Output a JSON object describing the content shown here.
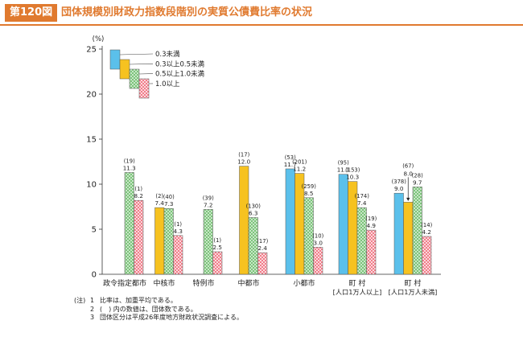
{
  "figure": {
    "badge": "第120図",
    "title": "団体規模別財政力指数段階別の実質公債費比率の状況"
  },
  "chart_data": {
    "type": "bar",
    "ylabel": "(%)",
    "ylim": [
      0,
      25
    ],
    "yticks": [
      0,
      5,
      10,
      15,
      20,
      25
    ],
    "grid": false,
    "legend_position": "top-left",
    "categories": [
      "政令指定都市",
      "中核市",
      "特例市",
      "中都市",
      "小都市",
      "町 村\n[人口1万人以上]",
      "町 村\n[人口1万人未満]"
    ],
    "series": [
      {
        "name": "0.3未満",
        "color": "#5bc0eb",
        "pattern": "solid",
        "values": [
          null,
          null,
          null,
          null,
          11.7,
          11.1,
          9.0
        ],
        "counts": [
          null,
          null,
          null,
          null,
          "(53)",
          "(95)",
          "(378)"
        ]
      },
      {
        "name": "0.3以上0.5未満",
        "color": "#f6c220",
        "pattern": "solid",
        "values": [
          null,
          7.4,
          null,
          12.0,
          11.2,
          10.3,
          8.0
        ],
        "counts": [
          null,
          "(2)",
          null,
          "(17)",
          "(201)",
          "(153)",
          "(67)"
        ]
      },
      {
        "name": "0.5以上1.0未満",
        "color": "#7cc47a",
        "pattern": "dots",
        "values": [
          11.3,
          7.3,
          7.2,
          6.3,
          8.5,
          7.4,
          9.7
        ],
        "counts": [
          "(19)",
          "(40)",
          "(39)",
          "(130)",
          "(259)",
          "(174)",
          "(28)"
        ]
      },
      {
        "name": "1.0以上",
        "color": "#ef6b7a",
        "pattern": "cross",
        "values": [
          8.2,
          4.3,
          2.5,
          2.4,
          3.0,
          4.9,
          4.2
        ],
        "counts": [
          "(1)",
          "(1)",
          "(1)",
          "(17)",
          "(10)",
          "(19)",
          "(14)"
        ]
      }
    ]
  },
  "notes": {
    "tag": "(注)",
    "items": [
      {
        "num": "1",
        "text": "比率は、加重平均である。"
      },
      {
        "num": "2",
        "text": "(　) 内の数値は、団体数である。"
      },
      {
        "num": "3",
        "text": "団体区分は平成26年度地方財政状況調査による。"
      }
    ]
  }
}
